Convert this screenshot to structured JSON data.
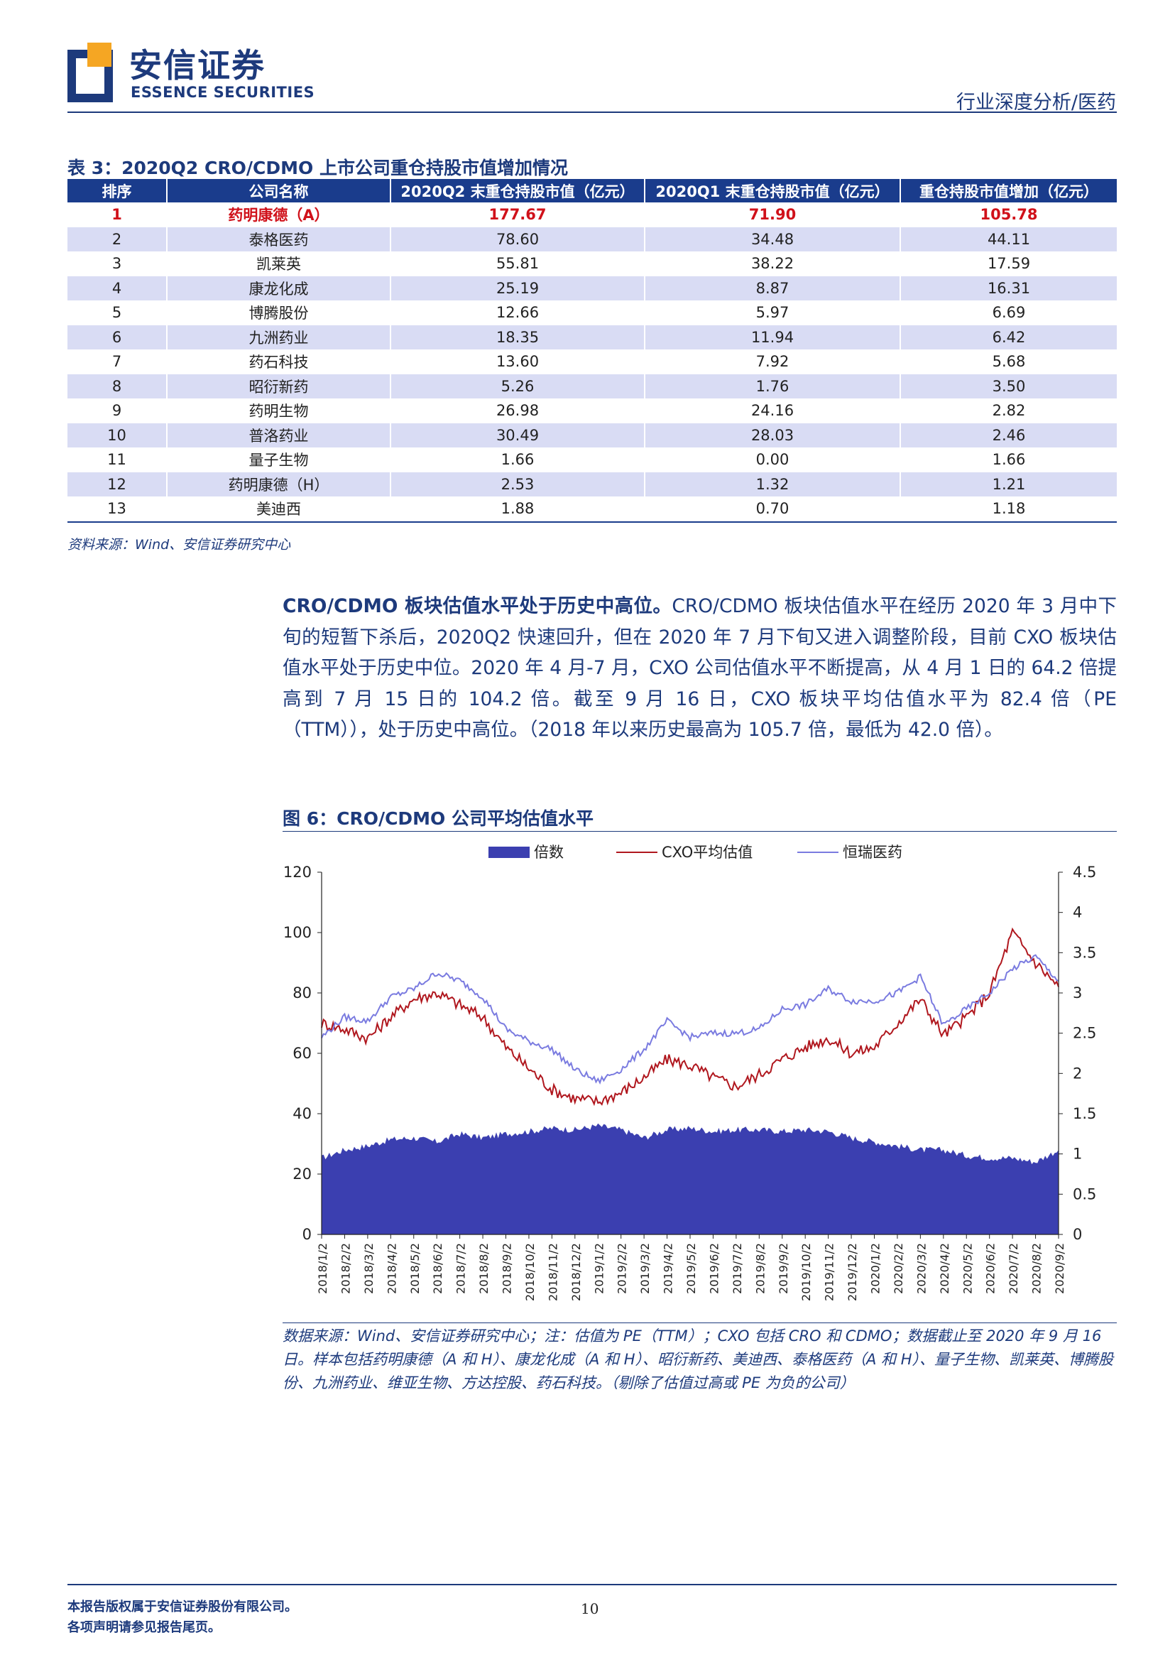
{
  "header": {
    "brand_cn": "安信证券",
    "brand_en": "ESSENCE SECURITIES",
    "section": "行业深度分析/医药",
    "colors": {
      "brand_blue": "#1d3a7c",
      "logo_orange": "#f5a623"
    }
  },
  "table": {
    "caption": "表 3：2020Q2 CRO/CDMO 上市公司重仓持股市值增加情况",
    "columns": [
      "排序",
      "公司名称",
      "2020Q2 末重仓持股市值（亿元）",
      "2020Q1 末重仓持股市值（亿元）",
      "重仓持股市值增加（亿元）"
    ],
    "rows": [
      [
        "1",
        "药明康德（A）",
        "177.67",
        "71.90",
        "105.78"
      ],
      [
        "2",
        "泰格医药",
        "78.60",
        "34.48",
        "44.11"
      ],
      [
        "3",
        "凯莱英",
        "55.81",
        "38.22",
        "17.59"
      ],
      [
        "4",
        "康龙化成",
        "25.19",
        "8.87",
        "16.31"
      ],
      [
        "5",
        "博腾股份",
        "12.66",
        "5.97",
        "6.69"
      ],
      [
        "6",
        "九洲药业",
        "18.35",
        "11.94",
        "6.42"
      ],
      [
        "7",
        "药石科技",
        "13.60",
        "7.92",
        "5.68"
      ],
      [
        "8",
        "昭衍新药",
        "5.26",
        "1.76",
        "3.50"
      ],
      [
        "9",
        "药明生物",
        "26.98",
        "24.16",
        "2.82"
      ],
      [
        "10",
        "普洛药业",
        "30.49",
        "28.03",
        "2.46"
      ],
      [
        "11",
        "量子生物",
        "1.66",
        "0.00",
        "1.66"
      ],
      [
        "12",
        "药明康德（H）",
        "2.53",
        "1.32",
        "1.21"
      ],
      [
        "13",
        "美迪西",
        "1.88",
        "0.70",
        "1.18"
      ]
    ],
    "source": "资料来源：Wind、安信证券研究中心"
  },
  "paragraph": {
    "lead": "CRO/CDMO 板块估值水平处于历史中高位。",
    "body": "CRO/CDMO 板块估值水平在经历 2020 年 3 月中下旬的短暂下杀后，2020Q2 快速回升，但在 2020 年 7 月下旬又进入调整阶段，目前 CXO 板块估值水平处于历史中位。2020 年 4 月-7 月，CXO 公司估值水平不断提高，从 4 月 1 日的 64.2 倍提高到 7 月 15 日的 104.2 倍。截至 9 月 16 日，CXO 板块平均估值水平为 82.4 倍（PE（TTM）），处于历史中高位。（2018 年以来历史最高为 105.7 倍，最低为 42.0 倍）。"
  },
  "figure": {
    "caption": "图 6：CRO/CDMO 公司平均估值水平",
    "note": "数据来源：Wind、安信证券研究中心；注：估值为 PE（TTM）；CXO 包括 CRO 和 CDMO；数据截止至 2020 年 9 月 16 日。样本包括药明康德（A 和 H）、康龙化成（A 和 H）、昭衍新药、美迪西、泰格医药（A 和 H）、量子生物、凯莱英、博腾股份、九洲药业、维亚生物、方达控股、药石科技。（剔除了估值过高或 PE 为负的公司）"
  },
  "chart_data": {
    "type": "line",
    "legend_position": "top",
    "grid": false,
    "x": [
      "2018/1/2",
      "2018/2/2",
      "2018/3/2",
      "2018/4/2",
      "2018/5/2",
      "2018/6/2",
      "2018/7/2",
      "2018/8/2",
      "2018/9/2",
      "2018/10/2",
      "2018/11/2",
      "2018/12/2",
      "2019/1/2",
      "2019/2/2",
      "2019/3/2",
      "2019/4/2",
      "2019/5/2",
      "2019/6/2",
      "2019/7/2",
      "2019/8/2",
      "2019/9/2",
      "2019/10/2",
      "2019/11/2",
      "2019/12/2",
      "2020/1/2",
      "2020/2/2",
      "2020/3/2",
      "2020/4/2",
      "2020/5/2",
      "2020/6/2",
      "2020/7/2",
      "2020/8/2",
      "2020/9/2"
    ],
    "y_left": {
      "ticks": [
        0,
        20,
        40,
        60,
        80,
        100,
        120
      ],
      "range": [
        0,
        120
      ]
    },
    "y_right": {
      "ticks": [
        "0",
        "0.5",
        "1",
        "1.5",
        "2",
        "2.5",
        "3",
        "3.5",
        "4",
        "4.5"
      ],
      "range": [
        0,
        4.5
      ]
    },
    "series": [
      {
        "name": "倍数",
        "kind": "area",
        "axis": "right",
        "color": "#3b3fb0",
        "values": [
          0.95,
          1.05,
          1.1,
          1.18,
          1.2,
          1.15,
          1.25,
          1.2,
          1.25,
          1.28,
          1.32,
          1.3,
          1.35,
          1.3,
          1.2,
          1.3,
          1.32,
          1.28,
          1.3,
          1.3,
          1.28,
          1.3,
          1.28,
          1.2,
          1.15,
          1.1,
          1.05,
          1.05,
          0.98,
          0.95,
          0.95,
          0.9,
          1.05
        ]
      },
      {
        "name": "CXO平均估值",
        "kind": "line",
        "axis": "left",
        "color": "#b0171e",
        "values": [
          70,
          68,
          65,
          72,
          78,
          80,
          76,
          72,
          62,
          55,
          48,
          45,
          44,
          47,
          52,
          58,
          56,
          52,
          49,
          53,
          58,
          62,
          65,
          60,
          62,
          70,
          78,
          66,
          72,
          80,
          100,
          90,
          82
        ]
      },
      {
        "name": "恒瑞医药",
        "kind": "line",
        "axis": "right",
        "color": "#7a7be0",
        "values": [
          2.45,
          2.7,
          2.65,
          2.95,
          3.05,
          3.25,
          3.15,
          2.95,
          2.55,
          2.4,
          2.3,
          2.05,
          1.9,
          2.05,
          2.3,
          2.65,
          2.45,
          2.5,
          2.5,
          2.55,
          2.8,
          2.85,
          3.05,
          2.9,
          2.9,
          3.0,
          3.2,
          2.6,
          2.8,
          3.0,
          3.3,
          3.45,
          3.15
        ]
      }
    ]
  },
  "footer": {
    "line1": "本报告版权属于安信证券股份有限公司。",
    "line2": "各项声明请参见报告尾页。",
    "page": "10"
  }
}
